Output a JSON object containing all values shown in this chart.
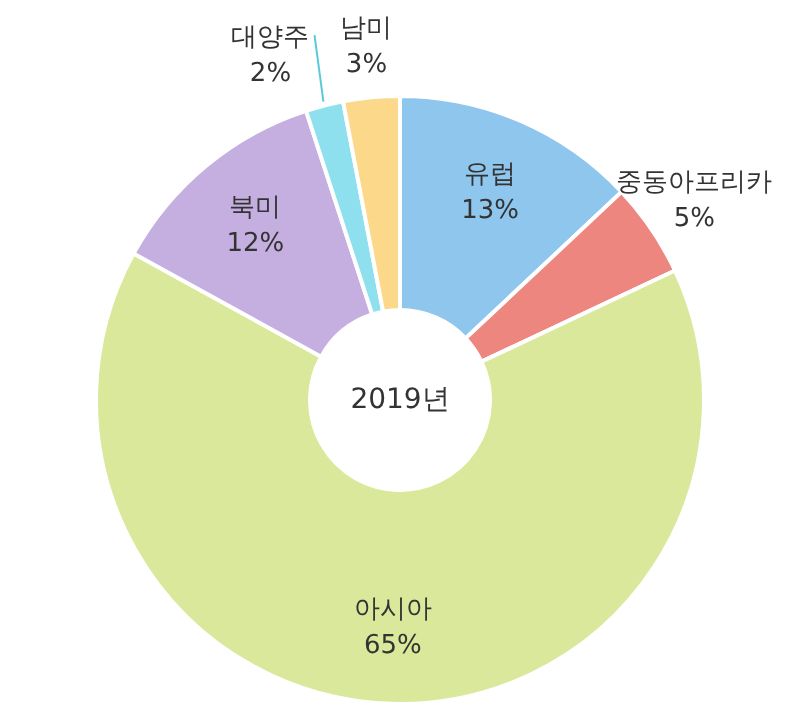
{
  "chart_data": {
    "type": "donut",
    "categories": [
      "유럽",
      "중동아프리카",
      "아시아",
      "북미",
      "대양주",
      "남미"
    ],
    "values": [
      13,
      5,
      65,
      12,
      2,
      3
    ],
    "value_labels": [
      "13%",
      "5%",
      "65%",
      "12%",
      "2%",
      "3%"
    ],
    "colors": [
      "#8ec6ee",
      "#ee8680",
      "#d9e89a",
      "#c5aee0",
      "#8fe0ef",
      "#fcd88a"
    ],
    "annotations": [
      "2019년"
    ],
    "legend": false
  }
}
